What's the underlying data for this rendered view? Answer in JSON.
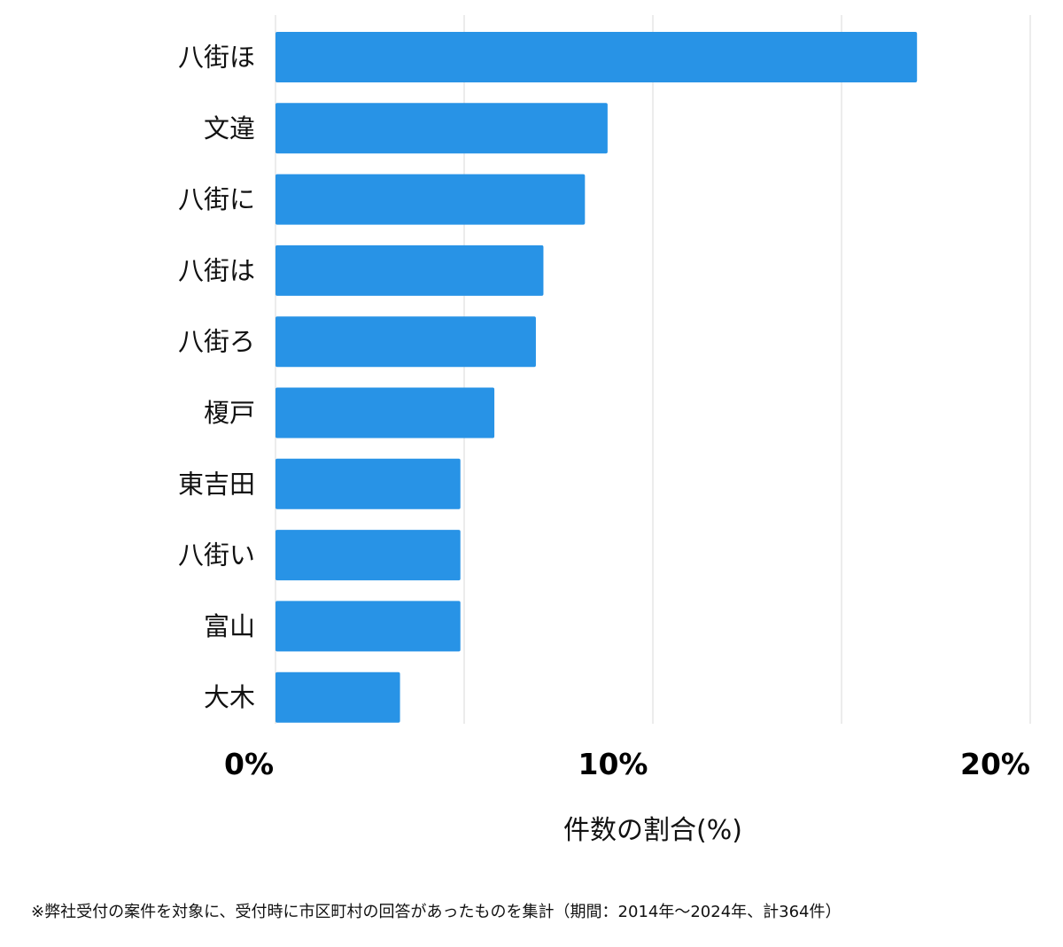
{
  "chart_data": {
    "type": "bar",
    "orientation": "horizontal",
    "categories": [
      "八街ほ",
      "文違",
      "八街に",
      "八街は",
      "八街ろ",
      "榎戸",
      "東吉田",
      "八街い",
      "富山",
      "大木"
    ],
    "values": [
      17.0,
      8.8,
      8.2,
      7.1,
      6.9,
      5.8,
      4.9,
      4.9,
      4.9,
      3.3
    ],
    "xlim": [
      0,
      20
    ],
    "gridlines": [
      0,
      5,
      10,
      15,
      20
    ],
    "xticks": [
      {
        "value": 0,
        "label": "0%"
      },
      {
        "value": 10,
        "label": "10%"
      },
      {
        "value": 20,
        "label": "20%"
      }
    ],
    "xlabel": "件数の割合(%)",
    "ylabel": "",
    "title": "",
    "grid": true,
    "bar_color": "#2893e6",
    "grid_color": "#d9d9d9"
  },
  "footnote": "※弊社受付の案件を対象に、受付時に市区町村の回答があったものを集計（期間：2014年～2024年、計364件）"
}
